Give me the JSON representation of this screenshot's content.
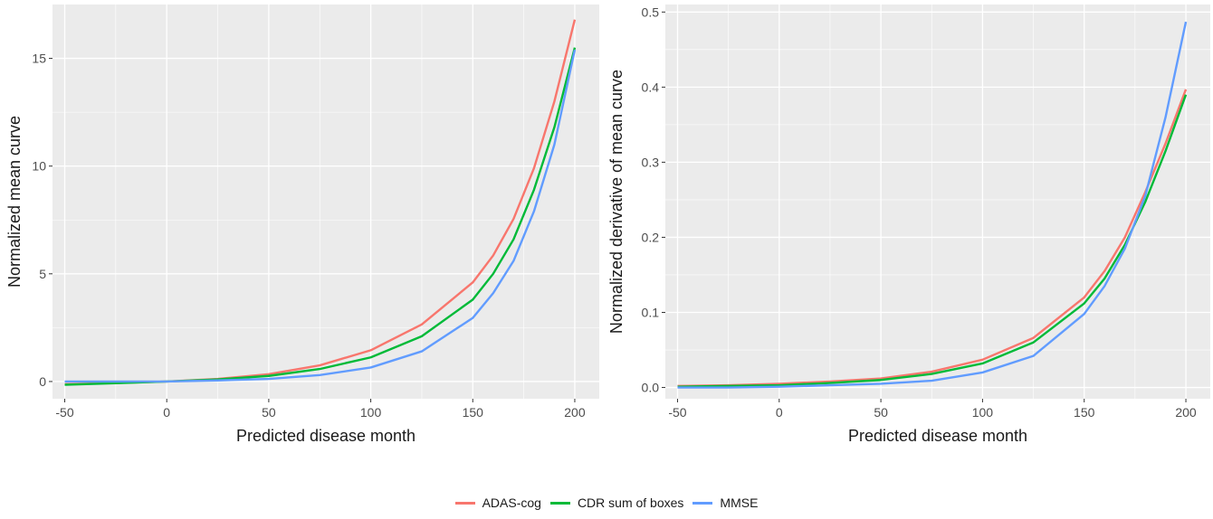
{
  "colors": {
    "panel_bg": "#ebebeb",
    "grid": "#ffffff",
    "series": [
      "#F8766D",
      "#00BA38",
      "#619CFF"
    ]
  },
  "legend": {
    "items": [
      "ADAS-cog",
      "CDR sum of boxes",
      "MMSE"
    ],
    "position": "bottom"
  },
  "chart_data": [
    {
      "type": "line",
      "xlabel": "Predicted disease month",
      "ylabel": "Normalized mean curve",
      "xlim": [
        -56,
        212
      ],
      "ylim": [
        -0.8,
        17.5
      ],
      "xticks": [
        -50,
        0,
        50,
        100,
        150,
        200
      ],
      "yticks": [
        0,
        5,
        10,
        15
      ],
      "grid": true,
      "x": [
        -50,
        -25,
        0,
        25,
        50,
        75,
        100,
        125,
        150,
        160,
        170,
        180,
        190,
        200
      ],
      "series": [
        {
          "name": "ADAS-cog",
          "values": [
            -0.12,
            -0.07,
            0.0,
            0.12,
            0.34,
            0.75,
            1.45,
            2.65,
            4.6,
            5.85,
            7.55,
            9.9,
            13.0,
            16.8
          ]
        },
        {
          "name": "CDR sum of boxes",
          "values": [
            -0.15,
            -0.08,
            0.0,
            0.1,
            0.26,
            0.58,
            1.12,
            2.1,
            3.8,
            5.0,
            6.6,
            8.9,
            11.8,
            15.5
          ]
        },
        {
          "name": "MMSE",
          "values": [
            0.0,
            0.0,
            0.0,
            0.05,
            0.12,
            0.3,
            0.65,
            1.4,
            2.95,
            4.1,
            5.6,
            7.9,
            11.0,
            15.4
          ]
        }
      ]
    },
    {
      "type": "line",
      "xlabel": "Predicted disease month",
      "ylabel": "Normalized derivative of mean curve",
      "xlim": [
        -56,
        212
      ],
      "ylim": [
        -0.015,
        0.51
      ],
      "xticks": [
        -50,
        0,
        50,
        100,
        150,
        200
      ],
      "yticks": [
        0.0,
        0.1,
        0.2,
        0.3,
        0.4,
        0.5
      ],
      "grid": true,
      "x": [
        -50,
        -25,
        0,
        25,
        50,
        75,
        100,
        125,
        150,
        160,
        170,
        180,
        190,
        200
      ],
      "series": [
        {
          "name": "ADAS-cog",
          "values": [
            0.002,
            0.003,
            0.005,
            0.008,
            0.012,
            0.021,
            0.037,
            0.066,
            0.12,
            0.155,
            0.2,
            0.26,
            0.325,
            0.397
          ]
        },
        {
          "name": "CDR sum of boxes",
          "values": [
            0.001,
            0.002,
            0.003,
            0.006,
            0.01,
            0.018,
            0.032,
            0.06,
            0.112,
            0.145,
            0.19,
            0.247,
            0.315,
            0.39
          ]
        },
        {
          "name": "MMSE",
          "values": [
            0.0,
            0.0,
            0.001,
            0.003,
            0.005,
            0.009,
            0.02,
            0.042,
            0.098,
            0.135,
            0.185,
            0.255,
            0.36,
            0.487
          ]
        }
      ]
    }
  ]
}
